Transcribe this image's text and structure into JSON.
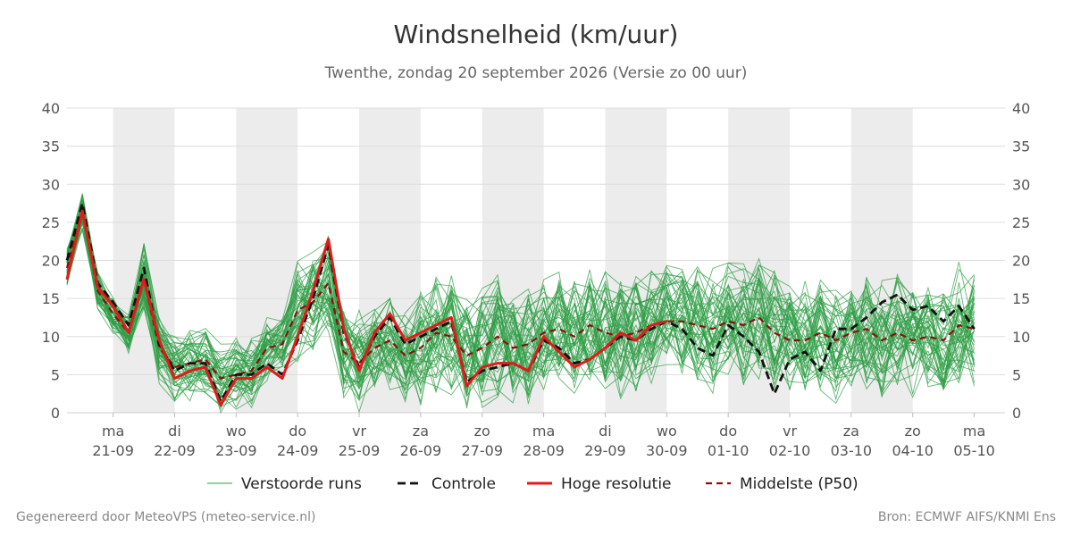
{
  "title": "Windsnelheid (km/uur)",
  "subtitle": "Twenthe, zondag 20 september 2026 (Versie zo 00 uur)",
  "footer_left": "Gegenereerd door MeteoVPS (meteo-service.nl)",
  "footer_right": "Bron: ECMWF AIFS/KNMI Ens",
  "colors": {
    "ensemble": "#2e9e44",
    "control": "#111111",
    "high_res": "#e01b1b",
    "median": "#8b0f0f",
    "shade": "#ececec",
    "grid": "#dddddd"
  },
  "chart_data": {
    "type": "line",
    "title": "Windsnelheid (km/uur)",
    "ylim": [
      0,
      40
    ],
    "yticks": [
      0,
      5,
      10,
      15,
      20,
      25,
      30,
      35,
      40
    ],
    "xlim": [
      -0.75,
      14.5
    ],
    "x_step_days": 0.25,
    "x_start": -0.75,
    "day_ticks": [
      {
        "x": 0,
        "day": "ma",
        "date": "21-09"
      },
      {
        "x": 1,
        "day": "di",
        "date": "22-09"
      },
      {
        "x": 2,
        "day": "wo",
        "date": "23-09"
      },
      {
        "x": 3,
        "day": "do",
        "date": "24-09"
      },
      {
        "x": 4,
        "day": "vr",
        "date": "25-09"
      },
      {
        "x": 5,
        "day": "za",
        "date": "26-09"
      },
      {
        "x": 6,
        "day": "zo",
        "date": "27-09"
      },
      {
        "x": 7,
        "day": "ma",
        "date": "28-09"
      },
      {
        "x": 8,
        "day": "di",
        "date": "29-09"
      },
      {
        "x": 9,
        "day": "wo",
        "date": "30-09"
      },
      {
        "x": 10,
        "day": "do",
        "date": "01-10"
      },
      {
        "x": 11,
        "day": "vr",
        "date": "02-10"
      },
      {
        "x": 12,
        "day": "za",
        "date": "03-10"
      },
      {
        "x": 13,
        "day": "zo",
        "date": "04-10"
      },
      {
        "x": 14,
        "day": "ma",
        "date": "05-10"
      }
    ],
    "shaded_days": [
      0,
      2,
      4,
      6,
      8,
      10,
      12
    ],
    "legend": [
      {
        "key": "ensemble",
        "label": "Verstoorde runs"
      },
      {
        "key": "control",
        "label": "Controle"
      },
      {
        "key": "high_res",
        "label": "Hoge resolutie"
      },
      {
        "key": "median",
        "label": "Middelste (P50)"
      }
    ],
    "series": [
      {
        "name": "Hoge resolutie",
        "key": "high_res",
        "x": [
          -0.75,
          -0.5,
          -0.25,
          0,
          0.25,
          0.5,
          0.75,
          1,
          1.25,
          1.5,
          1.75,
          2,
          2.25,
          2.5,
          2.75,
          3,
          3.25,
          3.5,
          3.75,
          4,
          4.25,
          4.5,
          4.75,
          5,
          5.25,
          5.5,
          5.75,
          6,
          6.25,
          6.5,
          6.75,
          7,
          7.25,
          7.5,
          7.75,
          8,
          8.25,
          8.5,
          8.75,
          9
        ],
        "values": [
          17.5,
          26.5,
          16.5,
          14,
          10.5,
          17.5,
          9.5,
          4.5,
          5.5,
          6,
          1,
          4.5,
          4.5,
          6,
          4.5,
          10,
          16,
          22.8,
          11,
          5.5,
          10.5,
          13,
          9.5,
          10.5,
          11.5,
          12.5,
          3.5,
          6,
          6.5,
          6.5,
          5.5,
          10,
          8,
          6,
          7,
          8.5,
          10.5,
          9.5,
          11.5,
          12
        ]
      },
      {
        "name": "Controle",
        "key": "control",
        "x": [
          -0.75,
          -0.5,
          -0.25,
          0,
          0.25,
          0.5,
          0.75,
          1,
          1.25,
          1.5,
          1.75,
          2,
          2.25,
          2.5,
          2.75,
          3,
          3.25,
          3.5,
          3.75,
          4,
          4.25,
          4.5,
          4.75,
          5,
          5.25,
          5.5,
          5.75,
          6,
          6.25,
          6.5,
          6.75,
          7,
          7.25,
          7.5,
          7.75,
          8,
          8.25,
          8.5,
          8.75,
          9,
          9.25,
          9.5,
          9.75,
          10,
          10.25,
          10.5,
          10.75,
          11,
          11.25,
          11.5,
          11.75,
          12,
          12.25,
          12.5,
          12.75,
          13,
          13.25,
          13.5,
          13.75,
          14
        ],
        "values": [
          20,
          27.5,
          17,
          14.5,
          11.5,
          19,
          9,
          5.5,
          6.5,
          6.5,
          1.5,
          5,
          5,
          6.5,
          5,
          9.5,
          15,
          22,
          10.5,
          6,
          10,
          12.5,
          9,
          10,
          11,
          12,
          4,
          5.5,
          6,
          6.5,
          5.5,
          9.5,
          8.5,
          6.5,
          7,
          8.5,
          10,
          9.5,
          11,
          12,
          11,
          8.5,
          7.5,
          11.5,
          10,
          8,
          2.5,
          7,
          8,
          5.5,
          11,
          11,
          12.5,
          14.5,
          15.5,
          13.5,
          14,
          12,
          14,
          11
        ]
      },
      {
        "name": "Middelste (P50)",
        "key": "median",
        "x": [
          -0.75,
          -0.5,
          -0.25,
          0,
          0.25,
          0.5,
          0.75,
          1,
          1.25,
          1.5,
          1.75,
          2,
          2.25,
          2.5,
          2.75,
          3,
          3.25,
          3.5,
          3.75,
          4,
          4.25,
          4.5,
          4.75,
          5,
          5.25,
          5.5,
          5.75,
          6,
          6.25,
          6.5,
          6.75,
          7,
          7.25,
          7.5,
          7.75,
          8,
          8.25,
          8.5,
          8.75,
          9,
          9.25,
          9.5,
          9.75,
          10,
          10.25,
          10.5,
          10.75,
          11,
          11.25,
          11.5,
          11.75,
          12,
          12.25,
          12.5,
          12.75,
          13,
          13.25,
          13.5,
          13.75,
          14
        ],
        "values": [
          19,
          26.5,
          16,
          13,
          10.5,
          17.5,
          8.5,
          6,
          6.5,
          7,
          4.5,
          5,
          5.5,
          8.5,
          9,
          13.5,
          14.5,
          17,
          8,
          6.5,
          8.5,
          9.5,
          7.5,
          8.5,
          10.5,
          10,
          7.5,
          8.5,
          10,
          8.5,
          9,
          10.5,
          11,
          10,
          11.5,
          10.5,
          10,
          10.5,
          11.5,
          12,
          12,
          11.5,
          11,
          12,
          11.5,
          12.5,
          10.5,
          9.5,
          9.5,
          10.5,
          9.5,
          10.5,
          11,
          9.5,
          10.5,
          9.5,
          10,
          9.5,
          11.5,
          11
        ]
      }
    ]
  }
}
